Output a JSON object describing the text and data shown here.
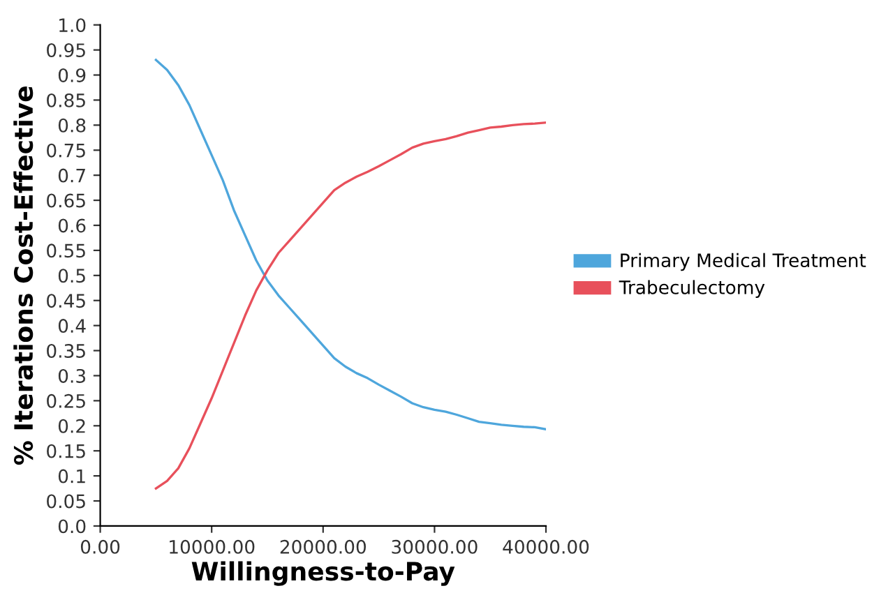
{
  "chart_data": {
    "type": "line",
    "xlabel": "Willingness-to-Pay",
    "ylabel": "% Iterations Cost-Effective",
    "xlim": [
      0,
      40000
    ],
    "ylim": [
      0,
      1
    ],
    "xticks": [
      {
        "value": 0,
        "label": "0.00"
      },
      {
        "value": 10000,
        "label": "10000.00"
      },
      {
        "value": 20000,
        "label": "20000.00"
      },
      {
        "value": 30000,
        "label": "30000.00"
      },
      {
        "value": 40000,
        "label": "40000.00"
      }
    ],
    "yticks": [
      {
        "value": 0,
        "label": "0.0"
      },
      0.05,
      0.1,
      0.15,
      0.2,
      0.25,
      0.3,
      0.35,
      0.4,
      0.45,
      0.5,
      0.55,
      0.6,
      0.65,
      0.7,
      0.75,
      0.8,
      0.85,
      0.9,
      0.95,
      {
        "value": 1,
        "label": "1.0"
      }
    ],
    "x": [
      5000,
      6000,
      7000,
      8000,
      9000,
      10000,
      11000,
      12000,
      13000,
      14000,
      15000,
      16000,
      17000,
      18000,
      19000,
      20000,
      21000,
      22000,
      23000,
      24000,
      25000,
      26000,
      27000,
      28000,
      29000,
      30000,
      31000,
      32000,
      33000,
      34000,
      35000,
      36000,
      37000,
      38000,
      39000,
      40000
    ],
    "series": [
      {
        "name": "Primary Medical Treatment",
        "color": "#4ea6dc",
        "values": [
          0.93,
          0.91,
          0.88,
          0.84,
          0.79,
          0.74,
          0.69,
          0.63,
          0.58,
          0.53,
          0.49,
          0.46,
          0.435,
          0.41,
          0.385,
          0.36,
          0.335,
          0.318,
          0.305,
          0.295,
          0.282,
          0.27,
          0.258,
          0.245,
          0.237,
          0.232,
          0.228,
          0.222,
          0.215,
          0.208,
          0.205,
          0.202,
          0.2,
          0.198,
          0.197,
          0.193
        ]
      },
      {
        "name": "Trabeculectomy",
        "color": "#e8505b",
        "values": [
          0.075,
          0.09,
          0.115,
          0.155,
          0.205,
          0.255,
          0.31,
          0.365,
          0.42,
          0.47,
          0.51,
          0.545,
          0.57,
          0.595,
          0.62,
          0.645,
          0.67,
          0.685,
          0.697,
          0.707,
          0.718,
          0.73,
          0.742,
          0.755,
          0.763,
          0.768,
          0.772,
          0.778,
          0.785,
          0.79,
          0.795,
          0.797,
          0.8,
          0.802,
          0.803,
          0.805
        ]
      }
    ],
    "legend": "right",
    "grid": false,
    "marker": "none",
    "line_style": "solid"
  }
}
